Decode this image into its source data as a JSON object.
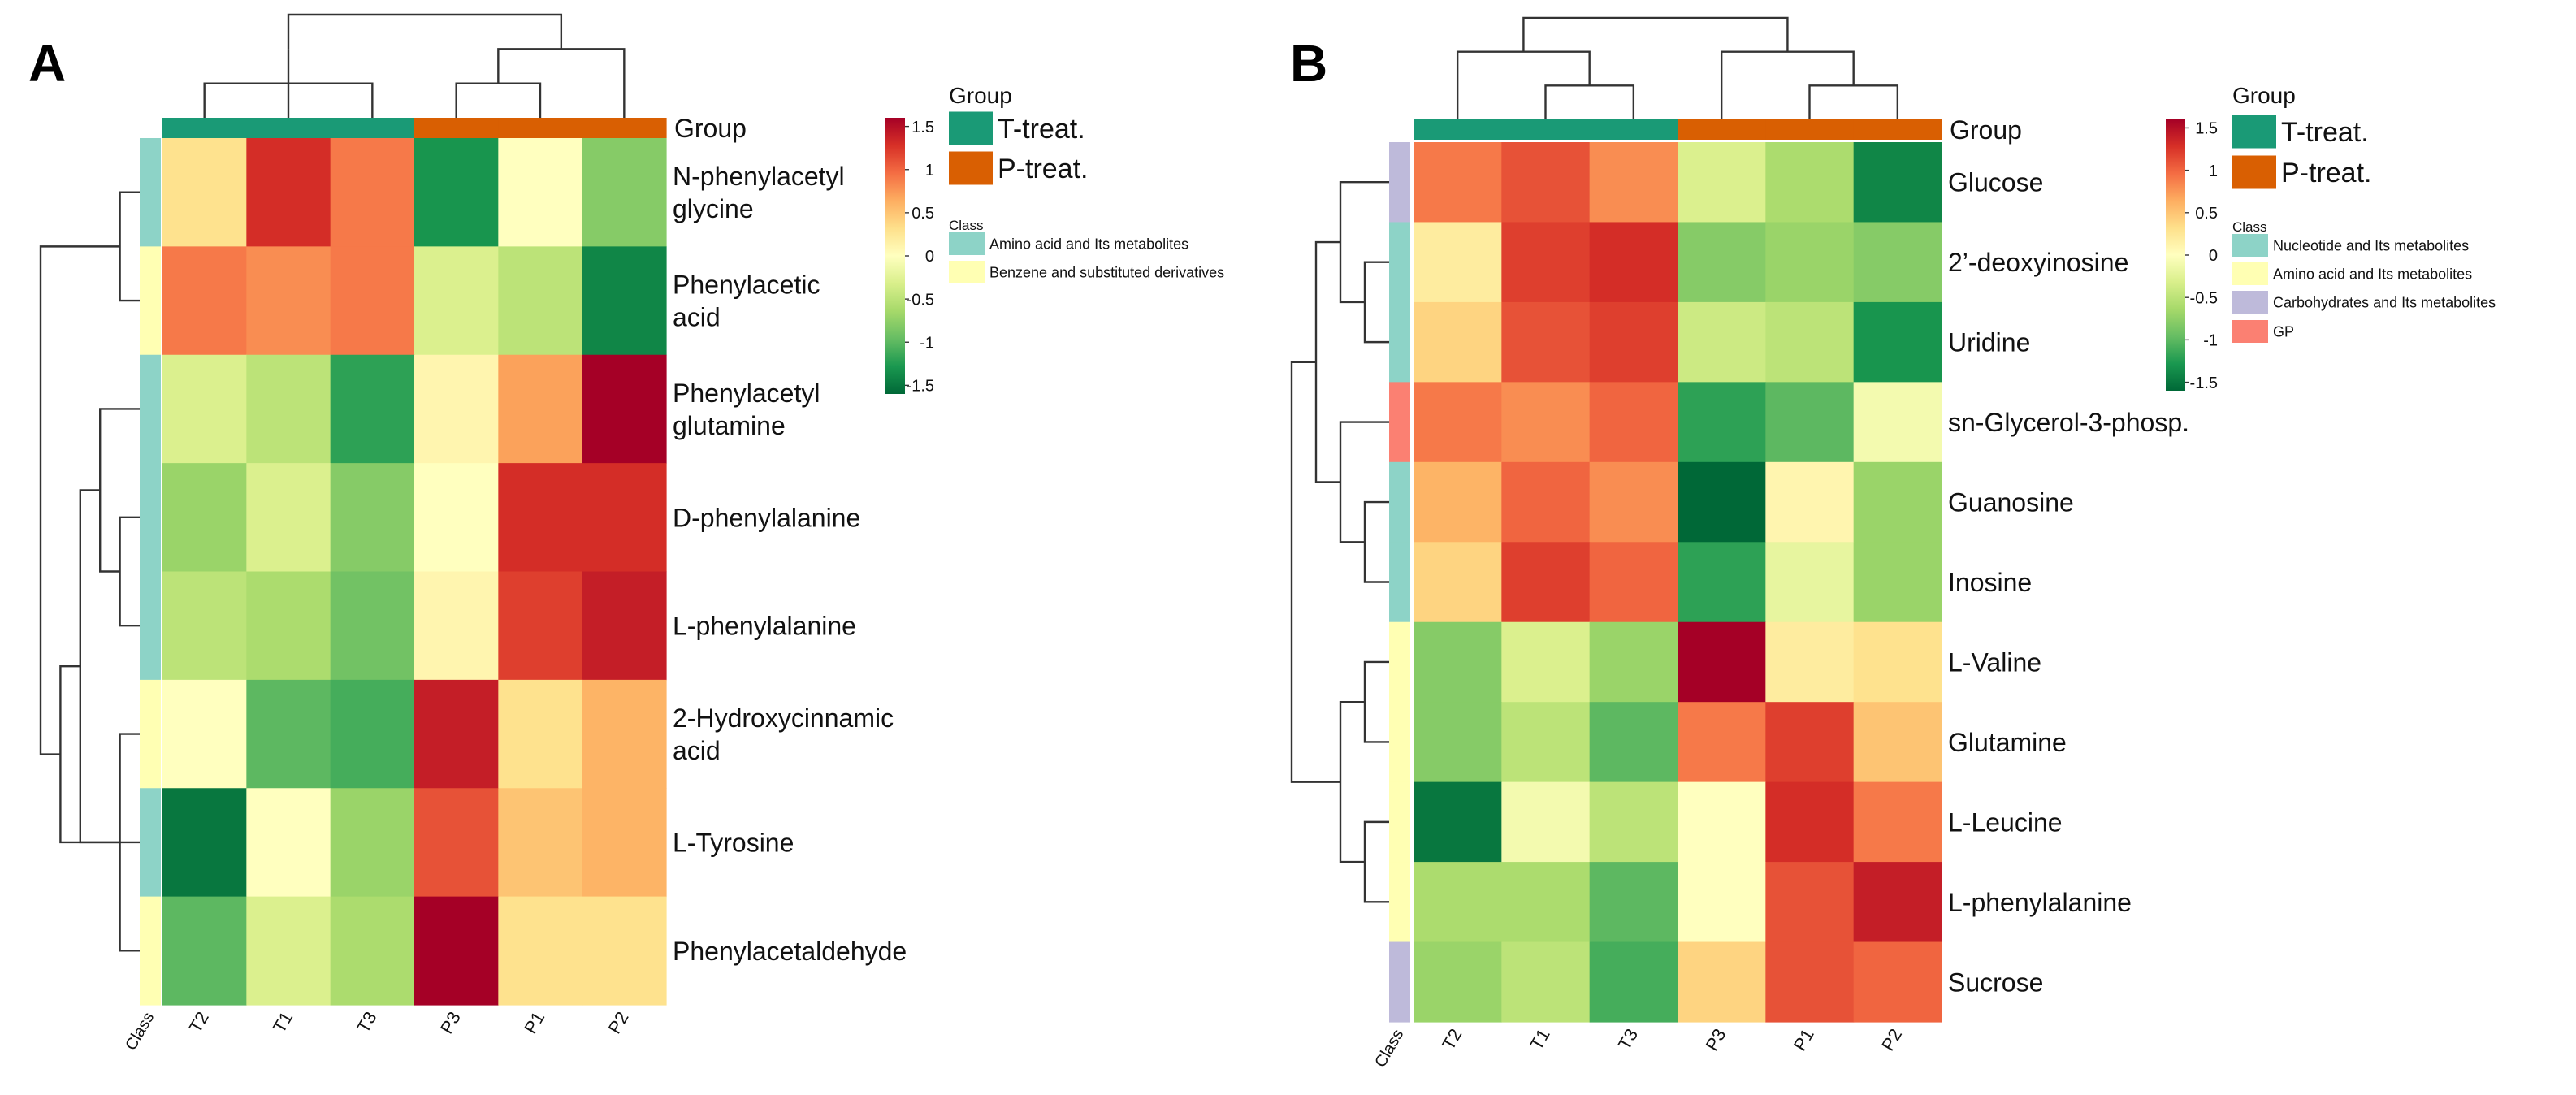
{
  "chart_data": [
    {
      "type": "heatmap",
      "panel_label": "A",
      "columns": [
        "T2",
        "T1",
        "T3",
        "P3",
        "P1",
        "P2"
      ],
      "column_axis_label": "Class",
      "group_header": "Group",
      "column_groups": [
        "T-treat.",
        "T-treat.",
        "T-treat.",
        "P-treat.",
        "P-treat.",
        "P-treat."
      ],
      "rows": [
        {
          "label": [
            "N-phenylacetyl",
            "glycine"
          ],
          "class": "Amino acid and Its metabolites",
          "values": [
            0.3,
            1.3,
            0.9,
            -1.3,
            0.0,
            -0.8
          ]
        },
        {
          "label": [
            "Phenylacetic",
            "acid"
          ],
          "class": "Benzene and substituted derivatives",
          "values": [
            0.9,
            0.8,
            0.9,
            -0.3,
            -0.5,
            -1.4
          ]
        },
        {
          "label": [
            "Phenylacetyl",
            "glutamine"
          ],
          "class": "Amino acid and Its metabolites",
          "values": [
            -0.3,
            -0.5,
            -1.2,
            0.1,
            0.7,
            1.6
          ]
        },
        {
          "label": [
            "D-phenylalanine"
          ],
          "class": "Amino acid and Its metabolites",
          "values": [
            -0.7,
            -0.3,
            -0.8,
            0.0,
            1.3,
            1.3
          ]
        },
        {
          "label": [
            "L-phenylalanine"
          ],
          "class": "Amino acid and Its metabolites",
          "values": [
            -0.5,
            -0.6,
            -0.9,
            0.1,
            1.2,
            1.4
          ]
        },
        {
          "label": [
            "2-Hydroxycinnamic",
            "acid"
          ],
          "class": "Benzene and substituted derivatives",
          "values": [
            0.0,
            -1.0,
            -1.1,
            1.4,
            0.3,
            0.6
          ]
        },
        {
          "label": [
            "L-Tyrosine"
          ],
          "class": "Amino acid and Its metabolites",
          "values": [
            -1.5,
            0.0,
            -0.7,
            1.1,
            0.5,
            0.6
          ]
        },
        {
          "label": [
            "Phenylacetaldehyde"
          ],
          "class": "Benzene and substituted derivatives",
          "values": [
            -1.0,
            -0.3,
            -0.6,
            1.7,
            0.3,
            0.3
          ]
        }
      ],
      "legend": {
        "scale_ticks": [
          "1.5",
          "1",
          "0.5",
          "0",
          "-0.5",
          "-1",
          "-1.5"
        ],
        "scale_range": [
          -1.6,
          1.6
        ],
        "group_title": "Group",
        "groups": [
          {
            "name": "T-treat.",
            "color": "#1a9a76"
          },
          {
            "name": "P-treat.",
            "color": "#d95f02"
          }
        ],
        "class_title": "Class",
        "classes": [
          {
            "name": "Amino acid and Its metabolites",
            "color": "#8dd3c7"
          },
          {
            "name": "Benzene and substituted derivatives",
            "color": "#ffffb3"
          }
        ]
      }
    },
    {
      "type": "heatmap",
      "panel_label": "B",
      "columns": [
        "T2",
        "T1",
        "T3",
        "P3",
        "P1",
        "P2"
      ],
      "column_axis_label": "Class",
      "group_header": "Group",
      "column_groups": [
        "T-treat.",
        "T-treat.",
        "T-treat.",
        "P-treat.",
        "P-treat.",
        "P-treat."
      ],
      "rows": [
        {
          "label": [
            "Glucose"
          ],
          "class": "Carbohydrates and Its metabolites",
          "values": [
            0.9,
            1.1,
            0.8,
            -0.3,
            -0.6,
            -1.4
          ]
        },
        {
          "label": [
            "2’-deoxyinosine"
          ],
          "class": "Nucleotide and Its metabolites",
          "values": [
            0.2,
            1.2,
            1.3,
            -0.8,
            -0.7,
            -0.8
          ]
        },
        {
          "label": [
            "Uridine"
          ],
          "class": "Nucleotide and Its metabolites",
          "values": [
            0.4,
            1.1,
            1.2,
            -0.4,
            -0.5,
            -1.3
          ]
        },
        {
          "label": [
            "sn-Glycerol-3-phosp."
          ],
          "class": "GP",
          "values": [
            0.9,
            0.8,
            1.0,
            -1.2,
            -1.0,
            -0.1
          ]
        },
        {
          "label": [
            "Guanosine"
          ],
          "class": "Nucleotide and Its metabolites",
          "values": [
            0.6,
            1.0,
            0.8,
            -1.6,
            0.1,
            -0.7
          ]
        },
        {
          "label": [
            "Inosine"
          ],
          "class": "Nucleotide and Its metabolites",
          "values": [
            0.4,
            1.2,
            1.0,
            -1.2,
            -0.2,
            -0.7
          ]
        },
        {
          "label": [
            "L-Valine"
          ],
          "class": "Amino acid and Its metabolites",
          "values": [
            -0.8,
            -0.3,
            -0.7,
            1.6,
            0.2,
            0.3
          ]
        },
        {
          "label": [
            "Glutamine"
          ],
          "class": "Amino acid and Its metabolites",
          "values": [
            -0.8,
            -0.5,
            -1.0,
            0.9,
            1.2,
            0.5
          ]
        },
        {
          "label": [
            "L-Leucine"
          ],
          "class": "Amino acid and Its metabolites",
          "values": [
            -1.5,
            -0.1,
            -0.5,
            0.0,
            1.3,
            0.9
          ]
        },
        {
          "label": [
            "L-phenylalanine"
          ],
          "class": "Amino acid and Its metabolites",
          "values": [
            -0.6,
            -0.6,
            -1.0,
            0.0,
            1.1,
            1.4
          ]
        },
        {
          "label": [
            "Sucrose"
          ],
          "class": "Carbohydrates and Its metabolites",
          "values": [
            -0.7,
            -0.5,
            -1.1,
            0.4,
            1.1,
            1.0
          ]
        }
      ],
      "legend": {
        "scale_ticks": [
          "1.5",
          "1",
          "0.5",
          "0",
          "-0.5",
          "-1",
          "-1.5"
        ],
        "scale_range": [
          -1.6,
          1.6
        ],
        "group_title": "Group",
        "groups": [
          {
            "name": "T-treat.",
            "color": "#1a9a76"
          },
          {
            "name": "P-treat.",
            "color": "#d95f02"
          }
        ],
        "class_title": "Class",
        "classes": [
          {
            "name": "Nucleotide and Its metabolites",
            "color": "#8dd3c7"
          },
          {
            "name": "Amino acid and Its metabolites",
            "color": "#ffffb3"
          },
          {
            "name": "Carbohydrates and Its metabolites",
            "color": "#bebada"
          },
          {
            "name": "GP",
            "color": "#fb8072"
          }
        ]
      }
    }
  ],
  "colors": {
    "scale": [
      "#006837",
      "#1a9850",
      "#66bd63",
      "#a6d96a",
      "#d9ef8b",
      "#ffffbf",
      "#fee08b",
      "#fdae61",
      "#f46d43",
      "#d73027",
      "#a50026"
    ],
    "dendrogram": "#333333"
  }
}
